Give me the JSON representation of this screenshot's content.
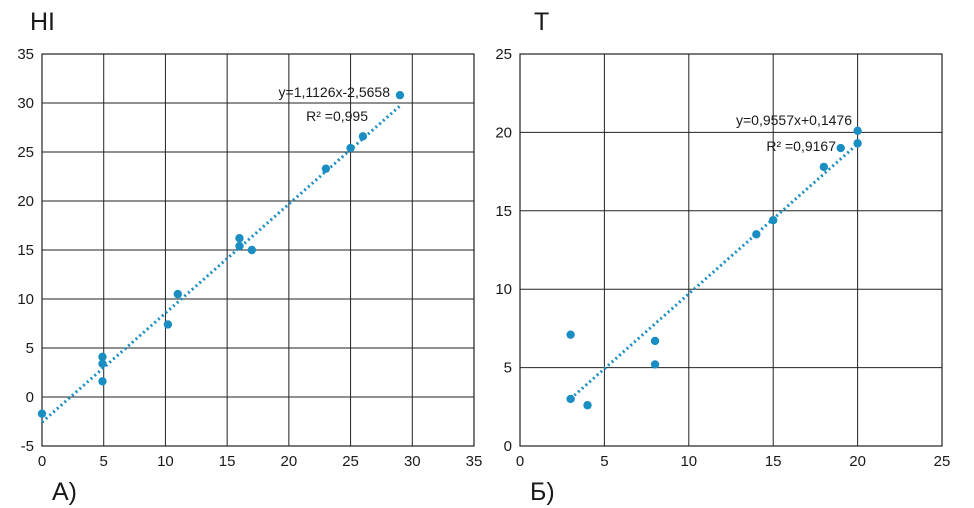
{
  "chart_data": [
    {
      "type": "scatter",
      "title": "HI",
      "panel_label": "A)",
      "xlabel": "",
      "ylabel": "",
      "xlim": [
        0,
        35
      ],
      "ylim": [
        -5,
        35
      ],
      "xticks": [
        0,
        5,
        10,
        15,
        20,
        25,
        30,
        35
      ],
      "yticks": [
        -5,
        0,
        5,
        10,
        15,
        20,
        25,
        30,
        35
      ],
      "grid": true,
      "color": "#1a8ec2",
      "points": [
        {
          "x": 0,
          "y": -1.7
        },
        {
          "x": 4.9,
          "y": 4.1
        },
        {
          "x": 4.9,
          "y": 3.4
        },
        {
          "x": 4.9,
          "y": 1.6
        },
        {
          "x": 10.2,
          "y": 7.4
        },
        {
          "x": 11,
          "y": 10.5
        },
        {
          "x": 16,
          "y": 16.2
        },
        {
          "x": 16,
          "y": 15.4
        },
        {
          "x": 17,
          "y": 15.0
        },
        {
          "x": 23,
          "y": 23.3
        },
        {
          "x": 25,
          "y": 25.4
        },
        {
          "x": 26,
          "y": 26.6
        },
        {
          "x": 29,
          "y": 30.8
        }
      ],
      "trendline": {
        "slope": 1.1126,
        "intercept": -2.5658,
        "x_range": [
          0,
          29
        ],
        "style": "dotted"
      },
      "equation": "y=1,1126x-2,5658",
      "r_squared": "R² =0,995"
    },
    {
      "type": "scatter",
      "title": "T",
      "panel_label": "Б)",
      "xlabel": "",
      "ylabel": "",
      "xlim": [
        0,
        25
      ],
      "ylim": [
        0,
        25
      ],
      "xticks": [
        0,
        5,
        10,
        15,
        20,
        25
      ],
      "yticks": [
        0,
        5,
        10,
        15,
        20,
        25
      ],
      "grid": true,
      "color": "#1a8ec2",
      "points": [
        {
          "x": 3,
          "y": 7.1
        },
        {
          "x": 3,
          "y": 3.0
        },
        {
          "x": 4,
          "y": 2.6
        },
        {
          "x": 8,
          "y": 6.7
        },
        {
          "x": 8,
          "y": 5.2
        },
        {
          "x": 14,
          "y": 13.5
        },
        {
          "x": 15,
          "y": 14.4
        },
        {
          "x": 18,
          "y": 17.8
        },
        {
          "x": 19,
          "y": 19.0
        },
        {
          "x": 20,
          "y": 20.1
        },
        {
          "x": 20,
          "y": 19.3
        }
      ],
      "trendline": {
        "slope": 0.9557,
        "intercept": 0.1476,
        "x_range": [
          3,
          20
        ],
        "style": "dotted"
      },
      "equation": "y=0,9557x+0,1476",
      "r_squared": "R² =0,9167"
    }
  ]
}
